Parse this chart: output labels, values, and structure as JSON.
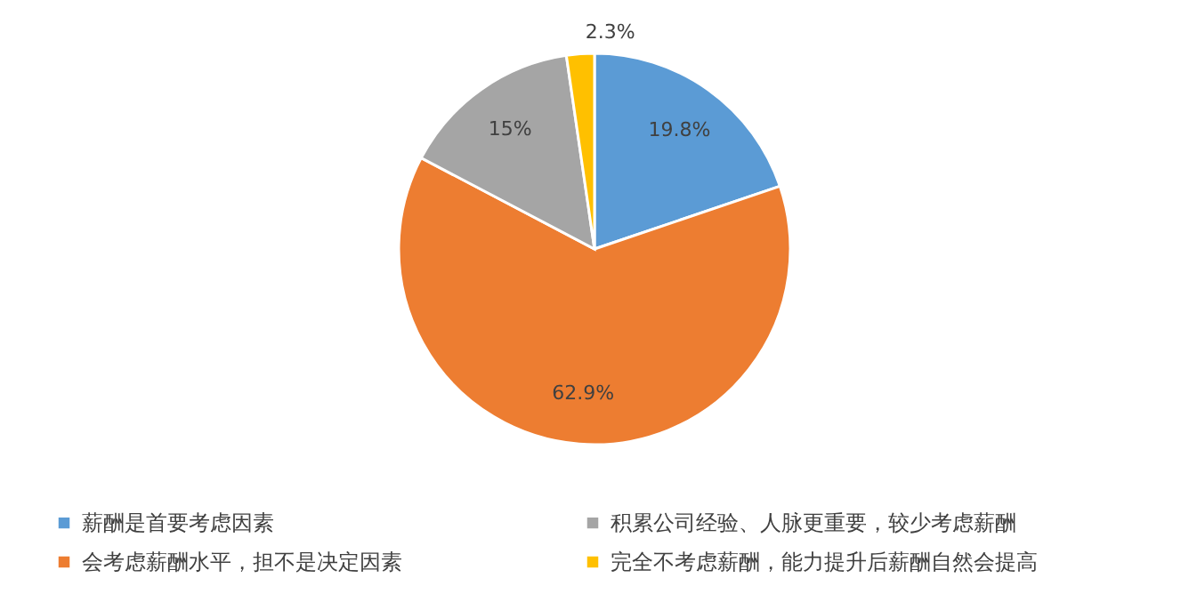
{
  "chart_data": {
    "type": "pie",
    "categories": [
      "薪酬是首要考虑因素",
      "会考虑薪酬水平，担不是决定因素",
      "积累公司经验、人脉更重要，较少考虑薪酬",
      "完全不考虑薪酬，能力提升后薪酬自然会提高"
    ],
    "values": [
      19.8,
      62.9,
      15,
      2.3
    ],
    "colors": [
      "#5b9bd5",
      "#ed7d31",
      "#a5a5a5",
      "#ffc000"
    ],
    "value_labels": [
      "19.8%",
      "62.9%",
      "15%",
      "2.3%"
    ],
    "legend": "bottom"
  }
}
